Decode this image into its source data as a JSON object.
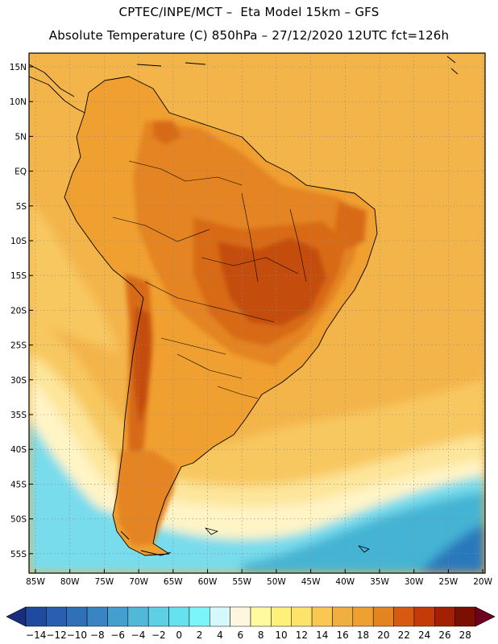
{
  "header": {
    "title": "CPTEC/INPE/MCT –  Eta Model 15km – GFS",
    "subtitle": "Absolute Temperature (C) 850hPa – 27/12/2020 12UTC fct=126h"
  },
  "map": {
    "lat_labels": [
      "15N",
      "10N",
      "5N",
      "EQ",
      "5S",
      "10S",
      "15S",
      "20S",
      "25S",
      "30S",
      "35S",
      "40S",
      "45S",
      "50S",
      "55S"
    ],
    "lon_labels": [
      "85W",
      "80W",
      "75W",
      "70W",
      "65W",
      "60W",
      "55W",
      "50W",
      "45W",
      "40W",
      "35W",
      "30W",
      "25W",
      "20W"
    ]
  },
  "colorbar": {
    "labels": [
      "-14",
      "-12",
      "-10",
      "-8",
      "-6",
      "-4",
      "-2",
      "0",
      "2",
      "4",
      "6",
      "8",
      "10",
      "12",
      "14",
      "16",
      "18",
      "20",
      "22",
      "24",
      "26",
      "28"
    ],
    "colors": [
      "#1f4aa0",
      "#2a5eb0",
      "#3070b8",
      "#3a84c4",
      "#43a0cc",
      "#52b8d8",
      "#5ed0e6",
      "#66e2ee",
      "#7cf5f8",
      "#d6f7fb",
      "#fff6e0",
      "#fff9a0",
      "#fff07a",
      "#fde36a",
      "#f8c850",
      "#f0b040",
      "#eea030",
      "#e48420",
      "#d85a10",
      "#c43a08",
      "#a42004",
      "#7a0f02"
    ],
    "low_color": "#1a2e80",
    "high_color": "#6e0020"
  },
  "field_colors": {
    "ocean_warm": "#f3b44a",
    "land_base": "#f0a030",
    "land_hot": "#e48420",
    "land_hotter": "#d86a18",
    "land_hottest": "#c44e10",
    "mild": "#f8c860",
    "cool": "#fde59a",
    "cooler": "#fff4c6",
    "cold": "#d8f4fb",
    "colder": "#78dcec",
    "coldest": "#44b4d4",
    "deep": "#2c78bc",
    "coast": "#000000",
    "grid": "#8a8a8a"
  }
}
